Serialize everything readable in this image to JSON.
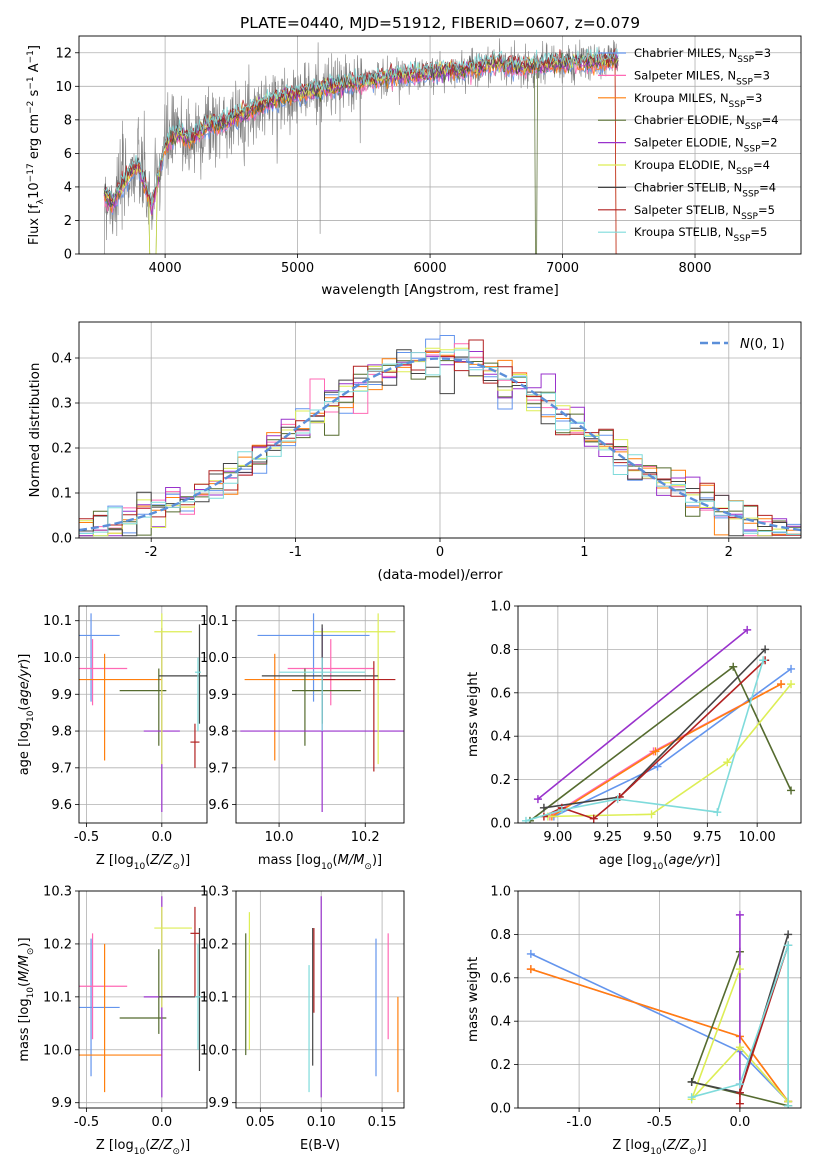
{
  "chart_data": [
    {
      "type": "line",
      "title": "PLATE=0440, MJD=51912, FIBERID=0607, z=0.079",
      "xlabel": "wavelength [Angstrom, rest frame]",
      "ylabel": "Flux [f_λ10^-17 erg cm^-2 s^-1 A^-1]",
      "xlim": [
        3350,
        8800
      ],
      "ylim": [
        0,
        13
      ],
      "xticks": [
        4000,
        5000,
        6000,
        7000,
        8000
      ],
      "yticks": [
        0,
        2,
        4,
        6,
        8,
        10,
        12
      ],
      "x_range_data": [
        3530,
        7420
      ],
      "legend_position": "upper-right",
      "series": [
        {
          "name": "Chabrier MILES, N_SSP=3",
          "color": "#6495ED"
        },
        {
          "name": "Salpeter MILES, N_SSP=3",
          "color": "#FF69B4"
        },
        {
          "name": "Kroupa MILES, N_SSP=3",
          "color": "#FF7F0E"
        },
        {
          "name": "Chabrier ELODIE, N_SSP=4",
          "color": "#556B2F"
        },
        {
          "name": "Salpeter ELODIE, N_SSP=2",
          "color": "#9932CC"
        },
        {
          "name": "Kroupa ELODIE, N_SSP=4",
          "color": "#DDEE55"
        },
        {
          "name": "Chabrier STELIB, N_SSP=4",
          "color": "#444444"
        },
        {
          "name": "Salpeter STELIB, N_SSP=5",
          "color": "#B22222"
        },
        {
          "name": "Kroupa STELIB, N_SSP=5",
          "color": "#7FDBDB"
        }
      ],
      "envelope": {
        "x": [
          3530,
          3600,
          3700,
          3800,
          3900,
          4000,
          4100,
          4200,
          4300,
          4500,
          4700,
          4900,
          5100,
          5300,
          5500,
          5700,
          5900,
          6100,
          6300,
          6500,
          6700,
          6900,
          7100,
          7300,
          7420
        ],
        "y": [
          3.8,
          3.0,
          4.5,
          5.3,
          2.8,
          6.5,
          7.2,
          6.8,
          7.6,
          8.0,
          8.8,
          9.4,
          9.7,
          10.0,
          10.3,
          10.6,
          10.7,
          10.9,
          11.0,
          11.4,
          11.1,
          11.3,
          11.4,
          11.5,
          11.6
        ]
      }
    },
    {
      "type": "histogram",
      "title": "",
      "xlabel": "(data-model)/error",
      "ylabel": "Normed distribution",
      "xlim": [
        -2.5,
        2.5
      ],
      "ylim": [
        0,
        0.48
      ],
      "xticks": [
        -2,
        -1,
        0,
        1,
        2
      ],
      "yticks": [
        0.0,
        0.1,
        0.2,
        0.3,
        0.4
      ],
      "bin_width": 0.1,
      "legend": "N(0,1)",
      "legend_position": "upper-right"
    },
    {
      "type": "scatter",
      "xlabel": "Z [log10(Z/Z_sun)]",
      "ylabel": "age [log10(age/yr)]",
      "xlim": [
        -0.55,
        0.3
      ],
      "ylim": [
        9.55,
        10.14
      ],
      "xticks": [
        -0.5,
        0.0
      ],
      "yticks": [
        9.6,
        9.7,
        9.8,
        9.9,
        10.0,
        10.1
      ],
      "points": [
        {
          "x": -0.47,
          "y": 10.06,
          "xerr": [
            0.43,
            0.19
          ],
          "yerr": [
            0.18,
            0.06
          ],
          "color": "#6495ED"
        },
        {
          "x": -0.46,
          "y": 9.97,
          "xerr": [
            0.2,
            0.23
          ],
          "yerr": [
            0.1,
            0.08
          ],
          "color": "#FF69B4"
        },
        {
          "x": -0.38,
          "y": 9.94,
          "xerr": [
            0.2,
            0.38
          ],
          "yerr": [
            0.22,
            0.07
          ],
          "color": "#FF7F0E"
        },
        {
          "x": -0.02,
          "y": 9.91,
          "xerr": [
            0.26,
            0.05
          ],
          "yerr": [
            0.15,
            0.06
          ],
          "color": "#556B2F"
        },
        {
          "x": 0.0,
          "y": 9.8,
          "xerr": [
            0.12,
            0.12
          ],
          "yerr": [
            0.22,
            0.28
          ],
          "color": "#9932CC"
        },
        {
          "x": 0.0,
          "y": 10.07,
          "xerr": [
            0.05,
            0.2
          ],
          "yerr": [
            0.36,
            0.05
          ],
          "color": "#DDEE55"
        },
        {
          "x": 0.25,
          "y": 9.95,
          "xerr": [
            0.27,
            0.06
          ],
          "yerr": [
            0.13,
            0.14
          ],
          "color": "#444444"
        },
        {
          "x": 0.22,
          "y": 9.77,
          "xerr": [
            0.03,
            0.03
          ],
          "yerr": [
            0.07,
            0.05
          ],
          "color": "#B22222"
        },
        {
          "x": 0.24,
          "y": 9.96,
          "xerr": [
            0.02,
            0.02
          ],
          "yerr": [
            0.16,
            0.04
          ],
          "color": "#7FDBDB"
        }
      ]
    },
    {
      "type": "scatter",
      "xlabel": "mass [log10(M/M_sun)]",
      "ylabel": "",
      "xlim": [
        9.9,
        10.29
      ],
      "ylim": [
        9.55,
        10.14
      ],
      "xticks": [
        10.0,
        10.2
      ],
      "yticks": [
        9.6,
        9.7,
        9.8,
        9.9,
        10.0,
        10.1
      ],
      "points": [
        {
          "x": 10.08,
          "y": 10.06,
          "xerr": [
            0.13,
            0.13
          ],
          "yerr": [
            0.18,
            0.06
          ],
          "color": "#6495ED"
        },
        {
          "x": 10.12,
          "y": 9.97,
          "xerr": [
            0.1,
            0.1
          ],
          "yerr": [
            0.1,
            0.08
          ],
          "color": "#FF69B4"
        },
        {
          "x": 9.99,
          "y": 9.94,
          "xerr": [
            0.07,
            0.21
          ],
          "yerr": [
            0.22,
            0.07
          ],
          "color": "#FF7F0E"
        },
        {
          "x": 10.06,
          "y": 9.91,
          "xerr": [
            0.03,
            0.13
          ],
          "yerr": [
            0.15,
            0.06
          ],
          "color": "#556B2F"
        },
        {
          "x": 10.1,
          "y": 9.8,
          "xerr": [
            0.19,
            0.19
          ],
          "yerr": [
            0.22,
            0.28
          ],
          "color": "#9932CC"
        },
        {
          "x": 10.23,
          "y": 10.07,
          "xerr": [
            0.15,
            0.04
          ],
          "yerr": [
            0.36,
            0.05
          ],
          "color": "#DDEE55"
        },
        {
          "x": 10.1,
          "y": 9.95,
          "xerr": [
            0.14,
            0.13
          ],
          "yerr": [
            0.13,
            0.14
          ],
          "color": "#444444"
        },
        {
          "x": 10.22,
          "y": 9.94,
          "xerr": [
            0.12,
            0.05
          ],
          "yerr": [
            0.25,
            0.05
          ],
          "color": "#B22222"
        },
        {
          "x": 10.1,
          "y": 9.96,
          "xerr": [
            0.1,
            0.1
          ],
          "yerr": [
            0.16,
            0.04
          ],
          "color": "#7FDBDB"
        }
      ]
    },
    {
      "type": "line",
      "xlabel": "age [log10(age/yr)]",
      "ylabel": "mass weight",
      "xlim": [
        8.8,
        10.22
      ],
      "ylim": [
        0,
        1.0
      ],
      "xticks": [
        9.0,
        9.25,
        9.5,
        9.75,
        10.0
      ],
      "xticklabels": [
        "9.00",
        "9.25",
        "9.50",
        "9.75",
        "10.00"
      ],
      "yticks": [
        0.0,
        0.2,
        0.4,
        0.6,
        0.8,
        1.0
      ],
      "series": [
        {
          "color": "#6495ED",
          "x": [
            8.98,
            9.5,
            10.17
          ],
          "y": [
            0.03,
            0.26,
            0.71
          ]
        },
        {
          "color": "#FF69B4",
          "x": [
            8.96,
            9.48,
            10.12
          ],
          "y": [
            0.03,
            0.33,
            0.64
          ]
        },
        {
          "color": "#FF7F0E",
          "x": [
            8.97,
            9.49,
            10.12
          ],
          "y": [
            0.03,
            0.33,
            0.64
          ]
        },
        {
          "color": "#556B2F",
          "x": [
            8.86,
            9.88,
            10.17
          ],
          "y": [
            0.01,
            0.72,
            0.15
          ]
        },
        {
          "color": "#9932CC",
          "x": [
            8.9,
            9.95
          ],
          "y": [
            0.11,
            0.89
          ]
        },
        {
          "color": "#DDEE55",
          "x": [
            8.95,
            9.47,
            9.85,
            10.17
          ],
          "y": [
            0.03,
            0.04,
            0.28,
            0.64
          ]
        },
        {
          "color": "#444444",
          "x": [
            8.93,
            9.31,
            10.04
          ],
          "y": [
            0.07,
            0.12,
            0.8
          ]
        },
        {
          "color": "#B22222",
          "x": [
            8.93,
            9.02,
            9.18,
            9.31,
            10.04
          ],
          "y": [
            0.03,
            0.07,
            0.02,
            0.12,
            0.75
          ]
        },
        {
          "color": "#7FDBDB",
          "x": [
            8.84,
            9.02,
            9.3,
            9.8,
            10.03
          ],
          "y": [
            0.01,
            0.06,
            0.11,
            0.05,
            0.75
          ]
        }
      ]
    },
    {
      "type": "scatter",
      "xlabel": "Z [log10(Z/Z_sun)]",
      "ylabel": "mass [log10(M/M_sun)]",
      "xlim": [
        -0.55,
        0.3
      ],
      "ylim": [
        9.89,
        10.3
      ],
      "xticks": [
        -0.5,
        0.0
      ],
      "yticks": [
        9.9,
        10.0,
        10.1,
        10.2,
        10.3
      ],
      "points": [
        {
          "x": -0.47,
          "y": 10.08,
          "xerr": [
            0.43,
            0.19
          ],
          "yerr": [
            0.13,
            0.13
          ],
          "color": "#6495ED"
        },
        {
          "x": -0.46,
          "y": 10.12,
          "xerr": [
            0.2,
            0.23
          ],
          "yerr": [
            0.1,
            0.1
          ],
          "color": "#FF69B4"
        },
        {
          "x": -0.38,
          "y": 9.99,
          "xerr": [
            0.2,
            0.38
          ],
          "yerr": [
            0.07,
            0.21
          ],
          "color": "#FF7F0E"
        },
        {
          "x": -0.02,
          "y": 10.06,
          "xerr": [
            0.26,
            0.05
          ],
          "yerr": [
            0.03,
            0.13
          ],
          "color": "#556B2F"
        },
        {
          "x": 0.0,
          "y": 10.1,
          "xerr": [
            0.12,
            0.12
          ],
          "yerr": [
            0.19,
            0.19
          ],
          "color": "#9932CC"
        },
        {
          "x": 0.0,
          "y": 10.23,
          "xerr": [
            0.05,
            0.2
          ],
          "yerr": [
            0.15,
            0.04
          ],
          "color": "#DDEE55"
        },
        {
          "x": 0.25,
          "y": 10.1,
          "xerr": [
            0.27,
            0.06
          ],
          "yerr": [
            0.14,
            0.13
          ],
          "color": "#444444"
        },
        {
          "x": 0.22,
          "y": 10.22,
          "xerr": [
            0.03,
            0.03
          ],
          "yerr": [
            0.12,
            0.05
          ],
          "color": "#B22222"
        },
        {
          "x": 0.24,
          "y": 10.1,
          "xerr": [
            0.02,
            0.02
          ],
          "yerr": [
            0.1,
            0.1
          ],
          "color": "#7FDBDB"
        }
      ]
    },
    {
      "type": "scatter",
      "xlabel": "E(B-V)",
      "ylabel": "",
      "xlim": [
        0.03,
        0.168
      ],
      "ylim": [
        9.89,
        10.3
      ],
      "xticks": [
        0.05,
        0.1,
        0.15
      ],
      "xticklabels": [
        "0.05",
        "0.10",
        "0.15"
      ],
      "yticks": [
        9.9,
        10.0,
        10.1,
        10.2,
        10.3
      ],
      "points": [
        {
          "x": 0.145,
          "y": 10.08,
          "xerr": [
            0,
            0
          ],
          "yerr": [
            0.13,
            0.13
          ],
          "color": "#6495ED"
        },
        {
          "x": 0.155,
          "y": 10.12,
          "xerr": [
            0,
            0
          ],
          "yerr": [
            0.1,
            0.1
          ],
          "color": "#FF69B4"
        },
        {
          "x": 0.163,
          "y": 9.99,
          "xerr": [
            0,
            0
          ],
          "yerr": [
            0.07,
            0.11
          ],
          "color": "#FF7F0E"
        },
        {
          "x": 0.038,
          "y": 10.11,
          "xerr": [
            0,
            0
          ],
          "yerr": [
            0.12,
            0.11
          ],
          "color": "#556B2F"
        },
        {
          "x": 0.1,
          "y": 10.1,
          "xerr": [
            0,
            0
          ],
          "yerr": [
            0.19,
            0.19
          ],
          "color": "#9932CC"
        },
        {
          "x": 0.041,
          "y": 10.13,
          "xerr": [
            0,
            0
          ],
          "yerr": [
            0.13,
            0.13
          ],
          "color": "#DDEE55"
        },
        {
          "x": 0.093,
          "y": 10.1,
          "xerr": [
            0,
            0
          ],
          "yerr": [
            0.13,
            0.13
          ],
          "color": "#444444"
        },
        {
          "x": 0.094,
          "y": 10.15,
          "xerr": [
            0,
            0
          ],
          "yerr": [
            0.08,
            0.08
          ],
          "color": "#B22222"
        },
        {
          "x": 0.09,
          "y": 10.04,
          "xerr": [
            0,
            0
          ],
          "yerr": [
            0.12,
            0.12
          ],
          "color": "#7FDBDB"
        }
      ]
    },
    {
      "type": "line",
      "xlabel": "Z [log10(Z/Z_sun)]",
      "ylabel": "mass weight",
      "xlim": [
        -1.38,
        0.38
      ],
      "ylim": [
        0,
        1.0
      ],
      "xticks": [
        -1.0,
        -0.5,
        0.0
      ],
      "yticks": [
        0.0,
        0.2,
        0.4,
        0.6,
        0.8,
        1.0
      ],
      "series": [
        {
          "color": "#6495ED",
          "x": [
            -1.3,
            0.0,
            0.3
          ],
          "y": [
            0.71,
            0.26,
            0.03
          ]
        },
        {
          "color": "#FF69B4",
          "x": [
            -1.3,
            0.0,
            0.3
          ],
          "y": [
            0.64,
            0.33,
            0.03
          ]
        },
        {
          "color": "#FF7F0E",
          "x": [
            -1.3,
            0.0,
            0.3
          ],
          "y": [
            0.64,
            0.33,
            0.03
          ]
        },
        {
          "color": "#556B2F",
          "x": [
            0.3,
            -0.3,
            0.0
          ],
          "y": [
            0.01,
            0.12,
            0.72
          ]
        },
        {
          "color": "#9932CC",
          "x": [
            0.0,
            0.0
          ],
          "y": [
            0.89,
            0.11
          ]
        },
        {
          "color": "#DDEE55",
          "x": [
            0.0,
            -0.3,
            0.0,
            0.3
          ],
          "y": [
            0.64,
            0.04,
            0.28,
            0.03
          ]
        },
        {
          "color": "#444444",
          "x": [
            -0.3,
            0.0,
            0.3
          ],
          "y": [
            0.12,
            0.07,
            0.8
          ]
        },
        {
          "color": "#B22222",
          "x": [
            0.0,
            0.0,
            0.3
          ],
          "y": [
            0.02,
            0.07,
            0.75
          ]
        },
        {
          "color": "#7FDBDB",
          "x": [
            -0.3,
            0.0,
            0.3,
            0.3
          ],
          "y": [
            0.05,
            0.11,
            0.75,
            0.01
          ]
        }
      ]
    }
  ]
}
